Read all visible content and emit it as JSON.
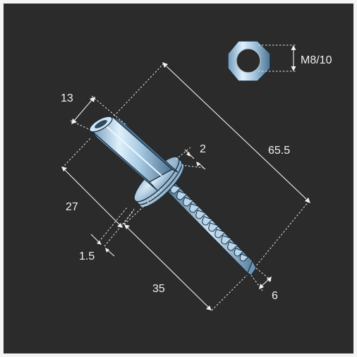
{
  "diagram": {
    "accent_color": "#9fc7e6",
    "background_color": "#2b2b2b",
    "labels": {
      "nut_size": "M8/10",
      "nut_length": "13",
      "overall_length": "65.5",
      "washer_thickness": "2",
      "upper_length": "27",
      "washer_gap": "1.5",
      "thread_length": "35",
      "thread_diameter": "6"
    }
  }
}
